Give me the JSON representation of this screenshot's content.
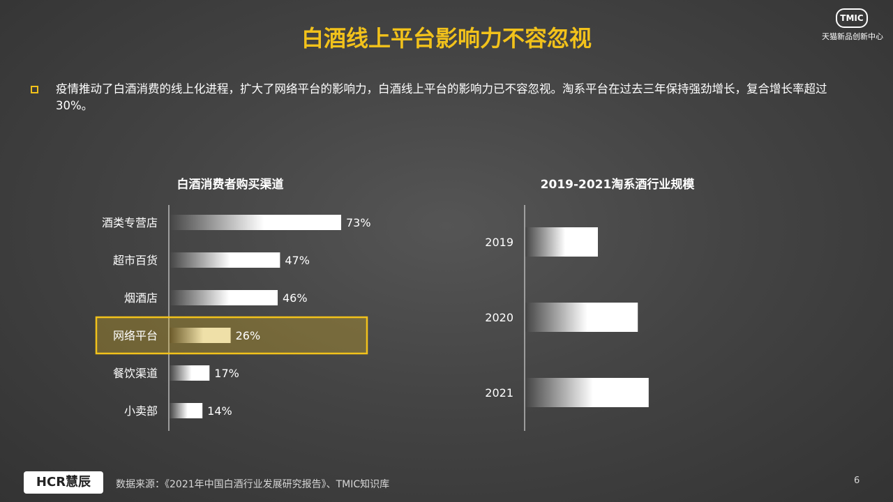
{
  "title": "白酒线上平台影响力不容忽视",
  "logo": {
    "tmic_text": "TMIC",
    "tmic_sub": "天猫新品创新中心"
  },
  "bullet": "疫情推动了白酒消费的线上化进程，扩大了网络平台的影响力，白酒线上平台的影响力已不容忽视。淘系平台在过去三年保持强劲增长，复合增长率超过30%。",
  "colors": {
    "accent": "#f2c21b",
    "bar_start": "#444444",
    "bar_end": "#ffffff",
    "highlight_bar_end": "#efe0a8"
  },
  "chart_data": [
    {
      "type": "bar",
      "orientation": "horizontal",
      "title": "白酒消费者购买渠道",
      "categories": [
        "酒类专营店",
        "超市百货",
        "烟酒店",
        "网络平台",
        "餐饮渠道",
        "小卖部"
      ],
      "values": [
        73,
        47,
        46,
        26,
        17,
        14
      ],
      "value_labels": [
        "73%",
        "47%",
        "46%",
        "26%",
        "17%",
        "14%"
      ],
      "unit": "%",
      "highlight": "网络平台",
      "xlim": [
        0,
        100
      ]
    },
    {
      "type": "bar",
      "orientation": "horizontal",
      "title": "2019-2021淘系酒行业规模",
      "categories": [
        "2019",
        "2020",
        "2021"
      ],
      "values": [
        0.4,
        0.62,
        0.68
      ],
      "value_scale": "relative, no axis values printed"
    }
  ],
  "footer": {
    "logo": "HCR慧辰",
    "source": "数据来源：《2021年中国白酒行业发展研究报告》、TMIC知识库",
    "page": "6"
  }
}
